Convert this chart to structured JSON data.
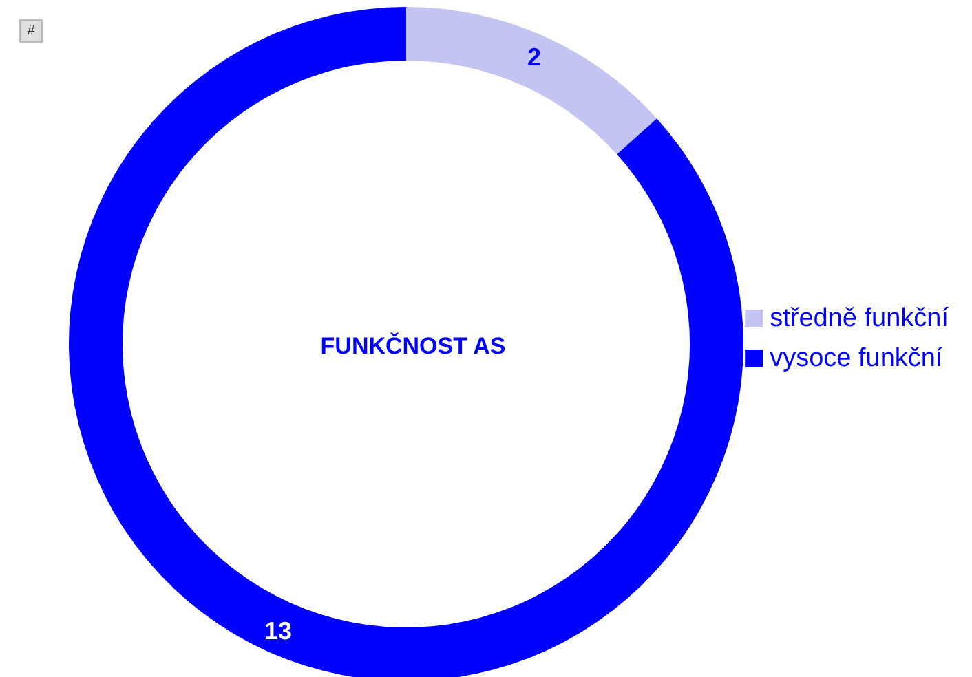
{
  "chart_data": {
    "type": "donut",
    "title": "FUNKČNOST AS",
    "categories": [
      "středně funkční",
      "vysoce funkční"
    ],
    "values": [
      2,
      13
    ],
    "colors": [
      "#c4c4f2",
      "#0000ff"
    ],
    "data_labels": true,
    "legend": "right",
    "annotations": [
      "#"
    ]
  }
}
